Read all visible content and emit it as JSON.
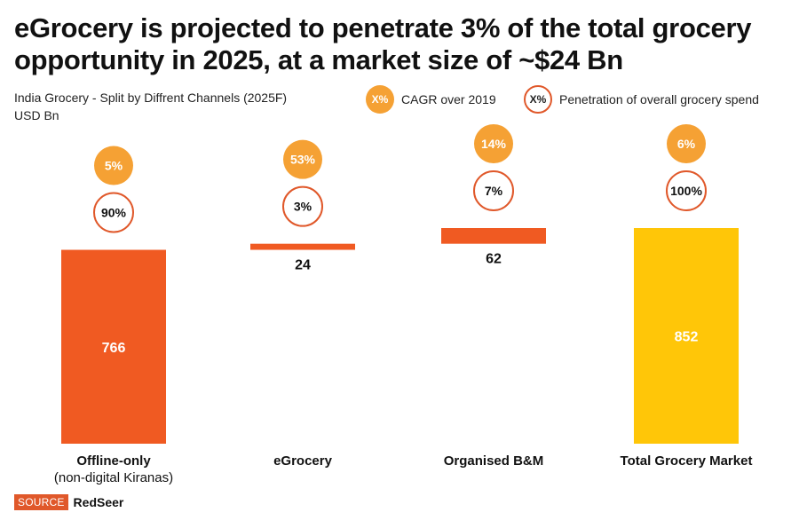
{
  "title": "eGrocery is projected to penetrate 3% of the total grocery opportunity in 2025, at a market size of ~$24 Bn",
  "subtitle_line1": "India Grocery - Split by Diffrent Channels (2025F)",
  "subtitle_line2": "USD Bn",
  "legend": {
    "cagr_symbol": "X%",
    "cagr_label": "CAGR over 2019",
    "penetration_symbol": "X%",
    "penetration_label": "Penetration of overall grocery spend"
  },
  "colors": {
    "bar_orange": "#F05A22",
    "bar_yellow": "#FFC608",
    "cagr_fill": "#F5A134",
    "penetration_stroke": "#E0582A",
    "text": "#111111"
  },
  "source": {
    "tag": "SOURCE",
    "name": "RedSeer"
  },
  "chart_data": {
    "type": "waterfall",
    "title": "India Grocery - Split by Diffrent Channels (2025F)",
    "ylabel": "USD Bn",
    "categories": [
      "Offline-only",
      "eGrocery",
      "Organised B&M",
      "Total Grocery Market"
    ],
    "category_sublabels": [
      "(non-digital Kiranas)",
      "",
      "",
      ""
    ],
    "values": [
      766,
      24,
      62,
      852
    ],
    "value_labels": [
      "766",
      "24",
      "62",
      "852"
    ],
    "cagr_labels": [
      "5%",
      "53%",
      "14%",
      "6%"
    ],
    "penetration_labels": [
      "90%",
      "3%",
      "7%",
      "100%"
    ],
    "ylim": [
      0,
      852
    ],
    "grid": false,
    "legend_position": "top-right"
  }
}
